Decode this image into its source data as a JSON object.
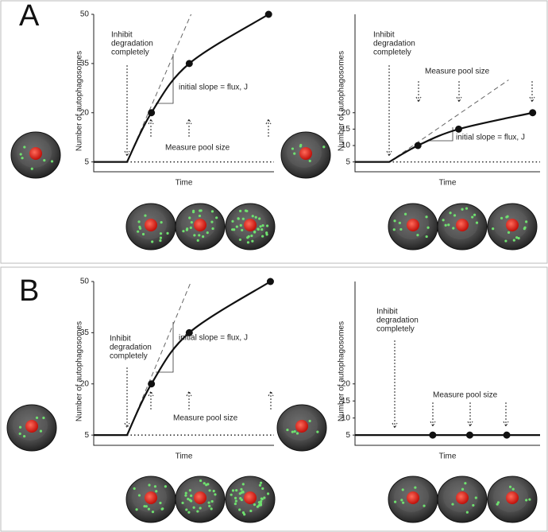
{
  "panel_labels": [
    "A",
    "B"
  ],
  "chart_data": [
    {
      "type": "line",
      "ylabel": "Number of autophagosomes",
      "xlabel": "Time",
      "xlim": [
        0,
        10
      ],
      "ylim": [
        2,
        50
      ],
      "yticks": [
        5,
        20,
        35,
        50
      ],
      "color": "#111111",
      "x": [
        0,
        1.85,
        3.2,
        5.3,
        9.7
      ],
      "values": [
        5,
        5,
        20,
        35,
        50
      ],
      "markers": [
        false,
        false,
        true,
        true,
        true
      ],
      "tangent": {
        "x": [
          1.85,
          5.4
        ],
        "values": [
          5,
          50
        ]
      },
      "baseline": {
        "x": [
          1.85,
          10
        ],
        "values": [
          5,
          5
        ]
      },
      "inhibit_text": [
        "Inhibit",
        "degradation",
        "completely"
      ],
      "slope_text": "initial slope = flux, J",
      "measure_text": "Measure pool size"
    },
    {
      "type": "line",
      "ylabel": "Number of autophagosomes",
      "xlabel": "Time",
      "xlim": [
        0,
        10
      ],
      "ylim": [
        2,
        50
      ],
      "yticks": [
        5,
        10,
        15,
        20
      ],
      "color": "#111111",
      "x": [
        0,
        1.85,
        3.4,
        5.6,
        9.6
      ],
      "values": [
        5,
        5,
        10,
        15,
        20
      ],
      "markers": [
        false,
        false,
        true,
        true,
        true
      ],
      "tangent": {
        "x": [
          1.85,
          8.3
        ],
        "values": [
          5,
          30
        ]
      },
      "baseline": {
        "x": [
          1.85,
          10
        ],
        "values": [
          5,
          5
        ]
      },
      "inhibit_text": [
        "Inhibit",
        "degradation",
        "completely"
      ],
      "slope_text": "initial slope = flux, J",
      "measure_text": "Measure pool size"
    },
    {
      "type": "line",
      "ylabel": "Number of autophagosomes",
      "xlabel": "Time",
      "xlim": [
        0,
        10
      ],
      "ylim": [
        2,
        50
      ],
      "yticks": [
        5,
        20,
        35,
        50
      ],
      "color": "#111111",
      "x": [
        0,
        1.85,
        3.2,
        5.3,
        9.8
      ],
      "values": [
        5,
        5,
        20,
        35,
        50
      ],
      "markers": [
        false,
        false,
        true,
        true,
        true
      ],
      "tangent": {
        "x": [
          1.85,
          5.4
        ],
        "values": [
          5,
          50
        ]
      },
      "baseline": {
        "x": [
          1.85,
          10
        ],
        "values": [
          5,
          5
        ]
      },
      "inhibit_text": [
        "Inhibit",
        "degradation",
        "completely"
      ],
      "slope_text": "initial slope = flux, J",
      "measure_text": "Measure pool size"
    },
    {
      "type": "line",
      "ylabel": "Number of autophagosomes",
      "xlabel": "Time",
      "xlim": [
        0,
        10
      ],
      "ylim": [
        2,
        50
      ],
      "yticks": [
        5,
        10,
        15,
        20
      ],
      "color": "#111111",
      "x": [
        0,
        4.2,
        6.2,
        8.2,
        10
      ],
      "values": [
        5,
        5,
        5,
        5,
        5
      ],
      "markers": [
        false,
        true,
        true,
        true,
        false
      ],
      "inhibit_text": [
        "Inhibit",
        "degradation",
        "completely"
      ],
      "measure_text": "Measure pool size"
    }
  ]
}
